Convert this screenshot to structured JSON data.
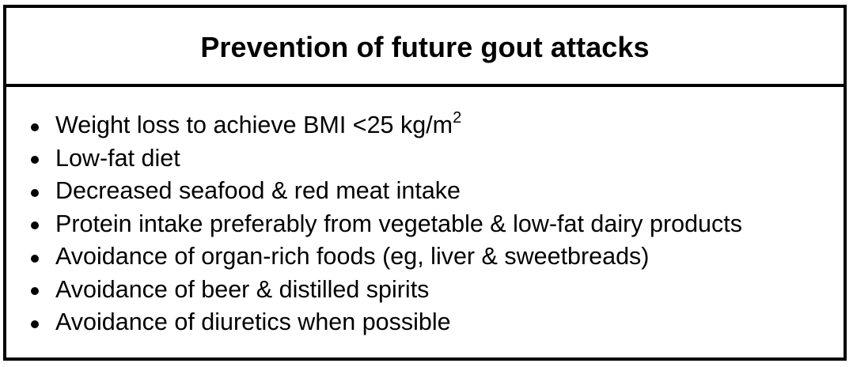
{
  "title": "Prevention of future gout attacks",
  "items": [
    {
      "text": "Weight loss to achieve BMI <25 kg/m",
      "sup": "2"
    },
    {
      "text": "Low-fat diet"
    },
    {
      "text": "Decreased seafood & red meat intake"
    },
    {
      "text": "Protein intake preferably from vegetable & low-fat dairy products"
    },
    {
      "text": "Avoidance of organ-rich foods (eg, liver & sweetbreads)"
    },
    {
      "text": "Avoidance of beer & distilled spirits"
    },
    {
      "text": "Avoidance of diuretics when possible"
    }
  ]
}
